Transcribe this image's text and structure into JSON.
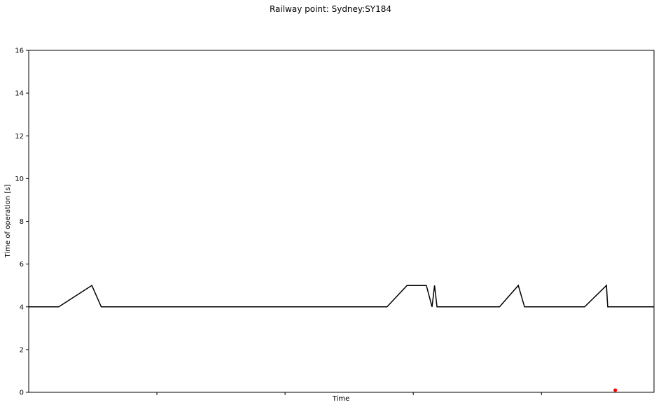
{
  "chart_data": {
    "type": "line",
    "title": "Railway point: Sydney:SY184",
    "xlabel": "Time",
    "ylabel": "Time of operation [s]",
    "ylim": [
      0,
      16
    ],
    "xlim": [
      0,
      100
    ],
    "yticks": [
      0,
      2,
      4,
      6,
      8,
      10,
      12,
      14,
      16
    ],
    "ytick_labels": [
      "0",
      "2",
      "4",
      "6",
      "8",
      "10",
      "12",
      "14",
      "16"
    ],
    "xticks": [
      20.5,
      41,
      61.5,
      82
    ],
    "grid": false,
    "series": [
      {
        "color": "#000000",
        "points": [
          [
            0,
            4
          ],
          [
            4.8,
            4
          ],
          [
            10.1,
            5
          ],
          [
            11.6,
            4
          ],
          [
            57.3,
            4
          ],
          [
            60.5,
            5
          ],
          [
            63.6,
            5
          ],
          [
            64.5,
            4
          ],
          [
            64.9,
            5
          ],
          [
            65.3,
            4
          ],
          [
            75.3,
            4
          ],
          [
            78.3,
            5
          ],
          [
            79.3,
            4
          ],
          [
            88.9,
            4
          ],
          [
            92.4,
            5
          ],
          [
            92.6,
            4
          ],
          [
            100,
            4
          ]
        ]
      }
    ],
    "markers": [
      {
        "x": 93.8,
        "y": 0.1,
        "color": "#ff0000"
      }
    ]
  }
}
